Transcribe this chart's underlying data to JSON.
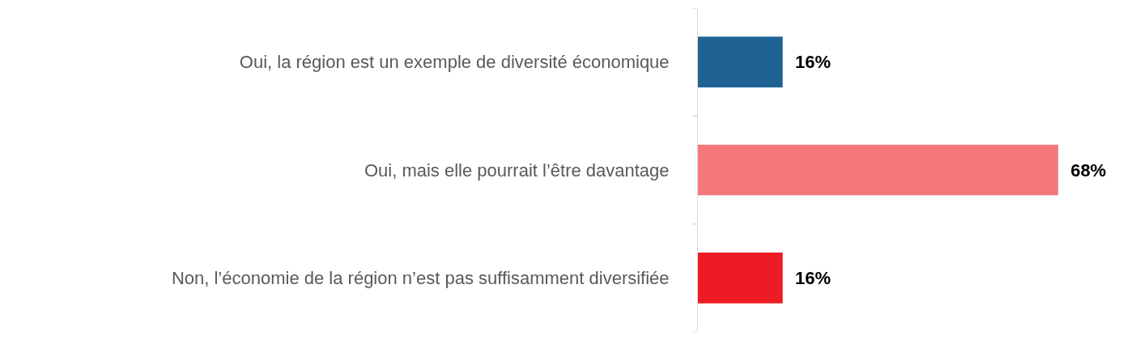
{
  "chart_data": {
    "type": "bar",
    "orientation": "horizontal",
    "categories": [
      "Oui, la région est un exemple de diversité économique",
      "Oui, mais elle pourrait l’être davantage",
      "Non, l’économie de la région n’est pas suffisamment diversifiée"
    ],
    "values": [
      16,
      68,
      16
    ],
    "colors": [
      "#1f6395",
      "#f4787a",
      "#ed1c24"
    ],
    "value_labels": [
      "16%",
      "68%",
      "16%"
    ]
  }
}
